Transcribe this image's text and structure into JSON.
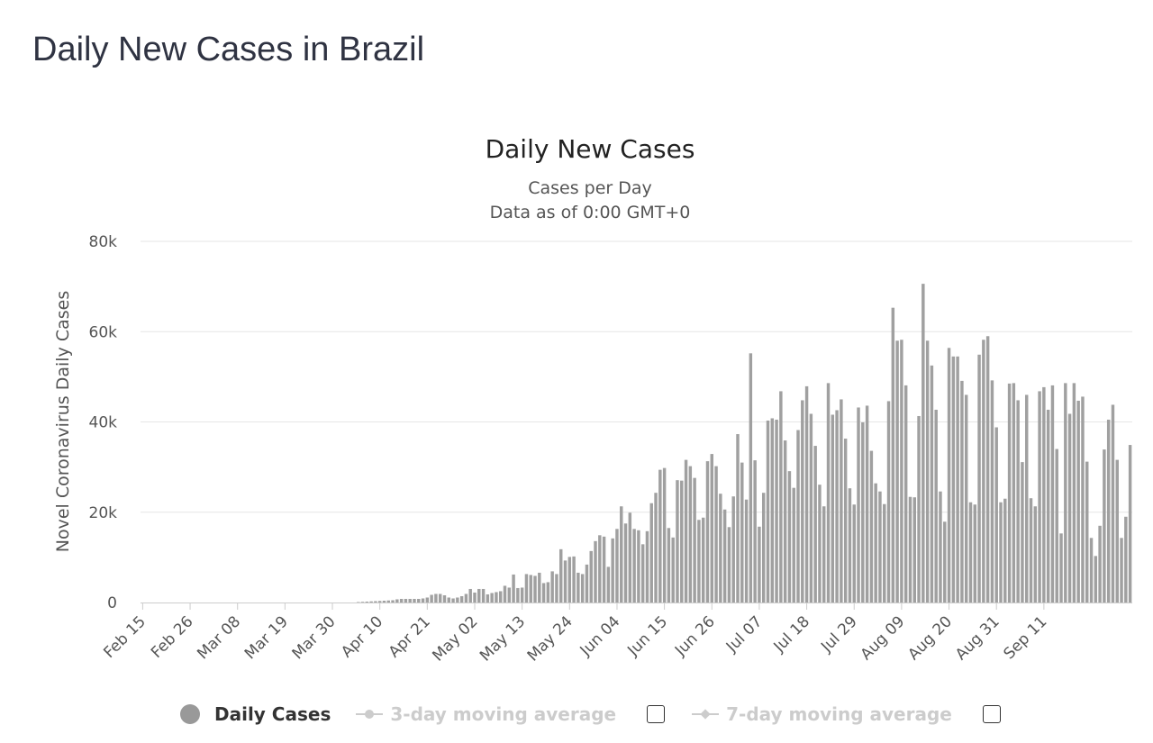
{
  "page": {
    "title": "Daily New Cases in Brazil"
  },
  "legend": {
    "daily_label": "Daily Cases",
    "ma3_label": "3-day moving average",
    "ma7_label": "7-day moving average"
  },
  "colors": {
    "bar": "#a0a0a0",
    "grid": "#e6e6e6",
    "axis": "#cccccc",
    "inactive": "#cccccc"
  },
  "chart_data": {
    "type": "bar",
    "title": "Daily New Cases",
    "subtitle": [
      "Cases per Day",
      "Data as of 0:00 GMT+0"
    ],
    "ylabel": "Novel Coronavirus Daily Cases",
    "ylim": [
      0,
      80000
    ],
    "yticks": [
      0,
      20000,
      40000,
      60000,
      80000
    ],
    "ytick_labels": [
      "0",
      "20k",
      "40k",
      "60k",
      "80k"
    ],
    "xtick_labels": [
      "Feb 15",
      "Feb 26",
      "Mar 08",
      "Mar 19",
      "Mar 30",
      "Apr 10",
      "Apr 21",
      "May 02",
      "May 13",
      "May 24",
      "Jun 04",
      "Jun 15",
      "Jun 26",
      "Jul 07",
      "Jul 18",
      "Jul 29",
      "Aug 09",
      "Aug 20",
      "Aug 31",
      "Sep 11"
    ],
    "x_start": "Feb 15",
    "x_end": "Sep 16",
    "legend_position": "bottom",
    "grid": true,
    "series": [
      {
        "name": "Daily Cases",
        "values": [
          0,
          0,
          0,
          0,
          0,
          0,
          0,
          0,
          0,
          0,
          0,
          0,
          0,
          0,
          0,
          0,
          0,
          0,
          0,
          0,
          0,
          0,
          0,
          0,
          0,
          0,
          0,
          0,
          0,
          0,
          0,
          0,
          0,
          0,
          0,
          0,
          0,
          0,
          0,
          0,
          0,
          0,
          0,
          0,
          0,
          0,
          0,
          0,
          0,
          0,
          100,
          150,
          200,
          250,
          300,
          350,
          400,
          450,
          500,
          700,
          800,
          800,
          800,
          800,
          800,
          900,
          1100,
          1700,
          1900,
          1900,
          1600,
          1100,
          900,
          1100,
          1400,
          1900,
          3000,
          2200,
          3000,
          3000,
          1800,
          2100,
          2300,
          2500,
          3700,
          3300,
          6200,
          3200,
          3300,
          6300,
          6100,
          5900,
          6600,
          4300,
          4500,
          6900,
          6300,
          11800,
          9300,
          10100,
          10200,
          6600,
          6300,
          8400,
          11400,
          13600,
          14900,
          14600,
          7900,
          14200,
          16300,
          21300,
          17500,
          19900,
          16300,
          16000,
          12900,
          15800,
          22000,
          24300,
          29400,
          29800,
          16500,
          14400,
          27100,
          27000,
          31600,
          30200,
          27600,
          18300,
          18800,
          31300,
          32900,
          30200,
          24100,
          20600,
          16700,
          23500,
          37300,
          31000,
          22800,
          55200,
          31500,
          16800,
          24300,
          40300,
          40800,
          40500,
          46800,
          35900,
          29100,
          25400,
          38200,
          44800,
          47900,
          41800,
          34700,
          26100,
          21300,
          48600,
          41600,
          42600,
          45000,
          36300,
          25300,
          21700,
          43200,
          39900,
          43600,
          33600,
          26400,
          24600,
          21800,
          44600,
          65300,
          58000,
          58200,
          48100,
          23400,
          23300,
          41300,
          70600,
          58000,
          52500,
          42700,
          24600,
          17900,
          56400,
          54500,
          54500,
          49100,
          46000,
          22200,
          21700,
          54900,
          58200,
          59000,
          49200,
          38800,
          22200,
          23000,
          48500,
          48600,
          44800,
          31100,
          46000,
          23100,
          21300,
          46800,
          47700,
          42700,
          48100,
          34000,
          15300,
          48600,
          41800,
          48600,
          44700,
          45600,
          31200,
          14300,
          10300,
          17000,
          33900,
          40500,
          43800,
          31600,
          14300,
          19000,
          34900
        ]
      }
    ]
  }
}
